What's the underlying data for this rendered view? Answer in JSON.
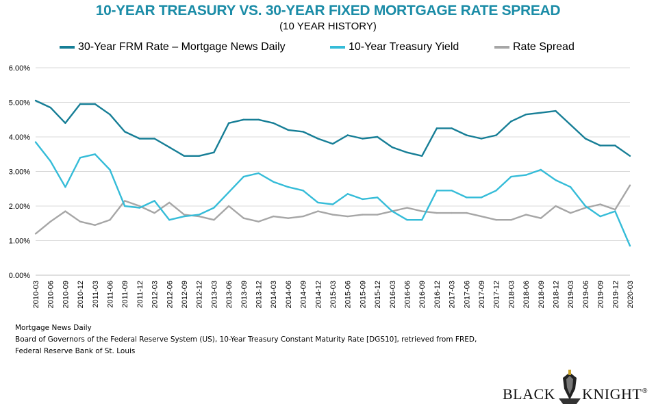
{
  "title": "10-YEAR TREASURY VS. 30-YEAR FIXED MORTGAGE RATE SPREAD",
  "subtitle": "(10 YEAR HISTORY)",
  "legend": [
    {
      "label": "30-Year FRM Rate – Mortgage News Daily",
      "color": "#167e96"
    },
    {
      "label": "10-Year Treasury Yield",
      "color": "#35bcd8"
    },
    {
      "label": "Rate Spread",
      "color": "#a6a6a6"
    }
  ],
  "sources": [
    "Mortgage News Daily",
    "Board of Governors of the Federal Reserve System (US), 10-Year Treasury Constant Maturity Rate [DGS10], retrieved from FRED,",
    "Federal Reserve Bank of St. Louis"
  ],
  "logo": {
    "left": "BLACK",
    "right": "KNIGHT",
    "mark": "®"
  },
  "chart_data": {
    "type": "line",
    "title": "10-YEAR TREASURY VS. 30-YEAR FIXED MORTGAGE RATE SPREAD",
    "subtitle": "(10 YEAR HISTORY)",
    "xlabel": "",
    "ylabel": "",
    "ylim": [
      0,
      6
    ],
    "y_ticks": [
      "0.00%",
      "1.00%",
      "2.00%",
      "3.00%",
      "4.00%",
      "5.00%",
      "6.00%"
    ],
    "x_ticks": [
      "2010-03",
      "2010-06",
      "2010-09",
      "2010-12",
      "2011-03",
      "2011-06",
      "2011-09",
      "2011-12",
      "2012-03",
      "2012-06",
      "2012-09",
      "2012-12",
      "2013-03",
      "2013-06",
      "2013-09",
      "2013-12",
      "2014-03",
      "2014-06",
      "2014-09",
      "2014-12",
      "2015-03",
      "2015-06",
      "2015-09",
      "2015-12",
      "2016-03",
      "2016-06",
      "2016-09",
      "2016-12",
      "2017-03",
      "2017-06",
      "2017-09",
      "2017-12",
      "2018-03",
      "2018-06",
      "2018-09",
      "2018-12",
      "2019-03",
      "2019-06",
      "2019-09",
      "2019-12",
      "2020-03"
    ],
    "grid": true,
    "legend_position": "top",
    "x": [
      "2010-03",
      "2010-06",
      "2010-09",
      "2010-12",
      "2011-03",
      "2011-06",
      "2011-09",
      "2011-12",
      "2012-03",
      "2012-06",
      "2012-09",
      "2012-12",
      "2013-03",
      "2013-06",
      "2013-09",
      "2013-12",
      "2014-03",
      "2014-06",
      "2014-09",
      "2014-12",
      "2015-03",
      "2015-06",
      "2015-09",
      "2015-12",
      "2016-03",
      "2016-06",
      "2016-09",
      "2016-12",
      "2017-03",
      "2017-06",
      "2017-09",
      "2017-12",
      "2018-03",
      "2018-06",
      "2018-09",
      "2018-12",
      "2019-03",
      "2019-06",
      "2019-09",
      "2019-12",
      "2020-03"
    ],
    "series": [
      {
        "name": "30-Year FRM Rate – Mortgage News Daily",
        "color": "#167e96",
        "values": [
          5.05,
          4.85,
          4.4,
          4.95,
          4.95,
          4.65,
          4.15,
          3.95,
          3.95,
          3.7,
          3.45,
          3.45,
          3.55,
          4.4,
          4.5,
          4.5,
          4.4,
          4.2,
          4.15,
          3.95,
          3.8,
          4.05,
          3.95,
          4.0,
          3.7,
          3.55,
          3.45,
          4.25,
          4.25,
          4.05,
          3.95,
          4.05,
          4.45,
          4.65,
          4.7,
          4.75,
          4.35,
          3.95,
          3.75,
          3.75,
          3.45
        ]
      },
      {
        "name": "10-Year Treasury Yield",
        "color": "#35bcd8",
        "values": [
          3.85,
          3.3,
          2.55,
          3.4,
          3.5,
          3.05,
          2.0,
          1.95,
          2.15,
          1.6,
          1.7,
          1.75,
          1.95,
          2.4,
          2.85,
          2.95,
          2.7,
          2.55,
          2.45,
          2.1,
          2.05,
          2.35,
          2.2,
          2.25,
          1.85,
          1.6,
          1.6,
          2.45,
          2.45,
          2.25,
          2.25,
          2.45,
          2.85,
          2.9,
          3.05,
          2.75,
          2.55,
          2.0,
          1.7,
          1.85,
          0.85
        ]
      },
      {
        "name": "Rate Spread",
        "color": "#a6a6a6",
        "values": [
          1.2,
          1.55,
          1.85,
          1.55,
          1.45,
          1.6,
          2.15,
          2.0,
          1.8,
          2.1,
          1.75,
          1.7,
          1.6,
          2.0,
          1.65,
          1.55,
          1.7,
          1.65,
          1.7,
          1.85,
          1.75,
          1.7,
          1.75,
          1.75,
          1.85,
          1.95,
          1.85,
          1.8,
          1.8,
          1.8,
          1.7,
          1.6,
          1.6,
          1.75,
          1.65,
          2.0,
          1.8,
          1.95,
          2.05,
          1.9,
          2.6
        ]
      }
    ]
  }
}
